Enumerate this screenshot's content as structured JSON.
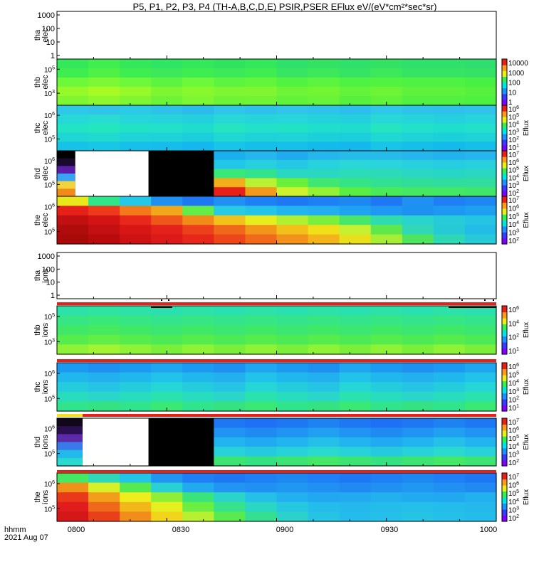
{
  "title": "P5, P1, P2, P3, P4 (TH-A,B,C,D,E) PSIR,PSER EFlux eV/(eV*cm²*sec*sr)",
  "x_axis": {
    "ticks": [
      "0800",
      "0830",
      "0900",
      "0930",
      "1000"
    ],
    "label_line1": "hhmm",
    "label_line2": "2021 Aug 07"
  },
  "colorbar_label": "Eflux",
  "chart_data": [
    {
      "type": "heatmap",
      "panel": "tha-elec",
      "ylabel": [
        "tha",
        "elec"
      ],
      "empty": true,
      "yticks": [
        "1000",
        "100",
        "10",
        "1"
      ],
      "colorbar": null
    },
    {
      "type": "heatmap",
      "panel": "thb-elec",
      "ylabel": [
        "thb",
        "elec"
      ],
      "yticks": [
        {
          "base": "10",
          "exp": "5"
        },
        {
          "base": "10",
          "exp": "3"
        }
      ],
      "colorbar": [
        "10000",
        "1000",
        "100",
        "10",
        "1"
      ],
      "bands": [
        [
          "#34e85a",
          "#40ee50",
          "#34e85a",
          "#2fe564",
          "#34e85a",
          "#30e25e",
          "#34e85a",
          "#2fe06a",
          "#33e262",
          "#2fe06a",
          "#33e262",
          "#2fe06a",
          "#2fe06a",
          "#30de70"
        ],
        [
          "#3eee50",
          "#4ef245",
          "#3eee50",
          "#3be95a",
          "#3eee50",
          "#3aea58",
          "#3eee50",
          "#38e562",
          "#3be95a",
          "#36e464",
          "#3be95a",
          "#36e464",
          "#36e464",
          "#35e266"
        ],
        [
          "#6ef83a",
          "#7cf834",
          "#6ef83a",
          "#5cf43e",
          "#6ef83a",
          "#5cf43e",
          "#62f53c",
          "#52f240",
          "#5cf43e",
          "#4ef242",
          "#52f240",
          "#4ef242",
          "#4ef242",
          "#48f044"
        ],
        [
          "#96fa2a",
          "#a8fa24",
          "#96fa2a",
          "#7ef632",
          "#88f82e",
          "#7ef632",
          "#80f630",
          "#6ef436",
          "#74f534",
          "#62f33a",
          "#6ef436",
          "#5ef23c",
          "#5ef23c",
          "#58f03e"
        ],
        [
          "#7ef632",
          "#8ef82e",
          "#7ef632",
          "#6ef436",
          "#7ef632",
          "#6ef436",
          "#70f435",
          "#60f33a",
          "#68f438",
          "#56f13e",
          "#60f33a",
          "#52f040",
          "#52f040",
          "#4ef042"
        ]
      ]
    },
    {
      "type": "heatmap",
      "panel": "thc-elec",
      "ylabel": [
        "thc",
        "elec"
      ],
      "yticks": [
        {
          "base": "10",
          "exp": "6"
        },
        {
          "base": "10",
          "exp": "5"
        }
      ],
      "colorbar": [
        {
          "base": "10",
          "exp": "6"
        },
        {
          "base": "10",
          "exp": "5"
        },
        {
          "base": "10",
          "exp": "4"
        },
        {
          "base": "10",
          "exp": "3"
        },
        {
          "base": "10",
          "exp": "2"
        },
        {
          "base": "10",
          "exp": "1"
        }
      ],
      "bands": [
        [
          "#2fc8e8",
          "#30c4ea",
          "#2ccae6",
          "#2ec2ea",
          "#2cbcec",
          "#30c6ea",
          "#2ec2ea",
          "#30c6ea",
          "#2ec4ea",
          "#2cbeec",
          "#30c8e8",
          "#2ec4ea",
          "#2ec2ea",
          "#30c4ea"
        ],
        [
          "#26d8d8",
          "#28dcd4",
          "#26d6da",
          "#28d4dc",
          "#24d0de",
          "#28d8d8",
          "#26d4dc",
          "#26d6da",
          "#24d2dc",
          "#24d0de",
          "#28d8d8",
          "#26d4dc",
          "#24d0de",
          "#26d4dc"
        ],
        [
          "#22e4c4",
          "#24e6be",
          "#22e2c6",
          "#22e0ca",
          "#20dcce",
          "#24e4c2",
          "#22e0ca",
          "#22e2c6",
          "#20decc",
          "#20dcce",
          "#24e4c2",
          "#22e0ca",
          "#20decc",
          "#22e0ca"
        ],
        [
          "#1ed6d4",
          "#20dad0",
          "#1ed4d6",
          "#1ed2d8",
          "#1ccedc",
          "#20d8d2",
          "#1ed2d8",
          "#1ed4d6",
          "#1cd0da",
          "#1ccedc",
          "#20d8d2",
          "#1ed2d8",
          "#1cd0da",
          "#1ed2d8"
        ],
        [
          "#16c2e8",
          "#18c6e6",
          "#16c0ea",
          "#16bcec",
          "#14b8ee",
          "#18c4e8",
          "#16beea",
          "#16c0ea",
          "#14baec",
          "#14b8ee",
          "#18c4e8",
          "#16beea",
          "#14baec",
          "#16beea"
        ]
      ]
    },
    {
      "type": "heatmap",
      "panel": "thd-elec",
      "ylabel": [
        "thd",
        "elec"
      ],
      "yticks": [
        {
          "base": "10",
          "exp": "6"
        },
        {
          "base": "10",
          "exp": "5"
        }
      ],
      "colorbar": [
        {
          "base": "10",
          "exp": "7"
        },
        {
          "base": "10",
          "exp": "6"
        },
        {
          "base": "10",
          "exp": "5"
        },
        {
          "base": "10",
          "exp": "4"
        },
        {
          "base": "10",
          "exp": "3"
        },
        {
          "base": "10",
          "exp": "2"
        }
      ],
      "gap": {
        "start_min": 5,
        "end_min": 25
      },
      "first_column": [
        "#000000",
        "#1a0a2e",
        "#5a1fa8",
        "#3aa2f2",
        "#f2d43a",
        "#f28a1a"
      ],
      "bands": [
        [
          "#000000",
          "#000000",
          "#000000",
          "#000000",
          "#000000",
          "#1ab0ee",
          "#24b6ec",
          "#20aaf0",
          "#24b6ec",
          "#26bcea",
          "#26bcea",
          "#24b6ec",
          "#22b2ee",
          "#24b6ec"
        ],
        [
          "#000000",
          "#000000",
          "#000000",
          "#000000",
          "#000000",
          "#22c6e6",
          "#26d0de",
          "#24c8e4",
          "#28d2dc",
          "#2ad6d8",
          "#2ad4da",
          "#28d0de",
          "#26cce0",
          "#28d0de"
        ],
        [
          "#000000",
          "#000000",
          "#000000",
          "#000000",
          "#000000",
          "#3ae87a",
          "#32e28c",
          "#28d8c0",
          "#2ad8c2",
          "#2cdcb8",
          "#2cdab8",
          "#2ad8c2",
          "#28d6c6",
          "#2ad8c2"
        ],
        [
          "#000000",
          "#000000",
          "#000000",
          "#000000",
          "#000000",
          "#f2ae1a",
          "#b8f232",
          "#6af03a",
          "#40e872",
          "#36e488",
          "#32e094",
          "#30de9a",
          "#30dc9e",
          "#30dc9e"
        ],
        [
          "#000000",
          "#000000",
          "#000000",
          "#000000",
          "#000000",
          "#e8201a",
          "#f29a1a",
          "#cef22e",
          "#92f234",
          "#5aee44",
          "#48ea5a",
          "#44e862",
          "#42e866",
          "#40e66a"
        ]
      ]
    },
    {
      "type": "heatmap",
      "panel": "the-elec",
      "ylabel": [
        "the",
        "elec"
      ],
      "yticks": [
        {
          "base": "10",
          "exp": "6"
        },
        {
          "base": "10",
          "exp": "5"
        }
      ],
      "colorbar": [
        {
          "base": "10",
          "exp": "7"
        },
        {
          "base": "10",
          "exp": "6"
        },
        {
          "base": "10",
          "exp": "5"
        },
        {
          "base": "10",
          "exp": "4"
        },
        {
          "base": "10",
          "exp": "3"
        },
        {
          "base": "10",
          "exp": "2"
        }
      ],
      "bands": [
        [
          "#e8e81a",
          "#30e68a",
          "#24c8e8",
          "#2090f2",
          "#1e78f4",
          "#2090f2",
          "#1e80f4",
          "#1e78f4",
          "#1e80f4",
          "#1e88f2",
          "#1e78f4",
          "#2090f2",
          "#1e80f4",
          "#1e88f2"
        ],
        [
          "#e8201a",
          "#ee3a1a",
          "#f27a1a",
          "#f2a61a",
          "#62ee48",
          "#28cce2",
          "#24c4e8",
          "#22b4ee",
          "#22aef0",
          "#20a2f2",
          "#1e98f2",
          "#1e90f2",
          "#1e98f2",
          "#1ea0f2"
        ],
        [
          "#c01010",
          "#d41414",
          "#e8281a",
          "#ee561a",
          "#f28a1a",
          "#f2c21a",
          "#e6ee1e",
          "#b0f030",
          "#7cee3c",
          "#48e66a",
          "#30dcae",
          "#2ad4cc",
          "#26cad8",
          "#24c4e4"
        ],
        [
          "#b00c0c",
          "#c41010",
          "#d81616",
          "#e4221a",
          "#ec401a",
          "#f0681a",
          "#f2961a",
          "#f2c01a",
          "#f0e01a",
          "#c6f032",
          "#5ee84e",
          "#30d8b8",
          "#26cad6",
          "#22bce6"
        ],
        [
          "#a80a0a",
          "#b80c0c",
          "#cc1212",
          "#dc1a1a",
          "#e6281a",
          "#ec461a",
          "#f06a1a",
          "#f2921a",
          "#f2b41a",
          "#e8e01a",
          "#a6ee36",
          "#4ee45e",
          "#2ed8b4",
          "#26cad6"
        ]
      ]
    },
    {
      "type": "heatmap",
      "panel": "tha-ions",
      "ylabel": [
        "tha",
        "ions"
      ],
      "empty": true,
      "yticks": [
        "1000",
        "100",
        "10",
        "1"
      ],
      "colorbar": null
    },
    {
      "type": "heatmap",
      "panel": "thb-ions",
      "ylabel": [
        "thb",
        "ions"
      ],
      "yticks": [
        {
          "base": "10",
          "exp": "5"
        },
        {
          "base": "10",
          "exp": "3"
        }
      ],
      "colorbar": [
        {
          "base": "10",
          "exp": "6"
        },
        {
          "base": "10",
          "exp": "4"
        },
        {
          "base": "10",
          "exp": "2"
        },
        {
          "base": "10",
          "exp": "1"
        }
      ],
      "bands": [
        [
          "#2ce2a8",
          "#2ee4a0",
          "#2ce2a8",
          "#2ae0ae",
          "#2ce2a8",
          "#2ae0ae",
          "#2ce2a8",
          "#2ae0ae",
          "#2ce2a8",
          "#2ae0ae",
          "#2ce2a8",
          "#2ae0ae",
          "#2ce2a8",
          "#2ae0ae"
        ],
        [
          "#36e684",
          "#3ae87a",
          "#36e684",
          "#34e48c",
          "#36e684",
          "#34e48c",
          "#36e684",
          "#34e48c",
          "#36e684",
          "#34e48c",
          "#36e684",
          "#34e48c",
          "#36e684",
          "#34e48c"
        ],
        [
          "#40e868",
          "#46ea5e",
          "#40e868",
          "#3ce672",
          "#40e868",
          "#3ce672",
          "#40e868",
          "#3ce672",
          "#40e868",
          "#3ce672",
          "#40e868",
          "#3ce672",
          "#40e868",
          "#3ce672"
        ],
        [
          "#56ec4c",
          "#62ee46",
          "#56ec4c",
          "#4cea54",
          "#56ec4c",
          "#4cea54",
          "#56ec4c",
          "#4cea54",
          "#56ec4c",
          "#4cea54",
          "#56ec4c",
          "#4cea54",
          "#56ec4c",
          "#4cea54"
        ],
        [
          "#8ef236",
          "#a0f432",
          "#8ef236",
          "#7aef3a",
          "#8ef236",
          "#7aef3a",
          "#8ef236",
          "#7aef3a",
          "#8ef236",
          "#7aef3a",
          "#8ef236",
          "#7aef3a",
          "#8ef236",
          "#7aef3a"
        ]
      ]
    },
    {
      "type": "heatmap",
      "panel": "thc-ions",
      "ylabel": [
        "thc",
        "ions"
      ],
      "yticks": [
        {
          "base": "10",
          "exp": "6"
        },
        {
          "base": "10",
          "exp": "5"
        }
      ],
      "colorbar": [
        {
          "base": "10",
          "exp": "6"
        },
        {
          "base": "10",
          "exp": "5"
        },
        {
          "base": "10",
          "exp": "4"
        },
        {
          "base": "10",
          "exp": "3"
        },
        {
          "base": "10",
          "exp": "2"
        },
        {
          "base": "10",
          "exp": "1"
        }
      ],
      "bands": [
        [
          "#1c9af2",
          "#1e90f2",
          "#1c9af2",
          "#1ea6f0",
          "#1c9af2",
          "#1e90f2",
          "#1ea6f0",
          "#1c9af2",
          "#1e90f2",
          "#1ea6f0",
          "#1c9af2",
          "#1e90f2",
          "#1c9af2",
          "#1ea6f0"
        ],
        [
          "#20b8ec",
          "#22b0ee",
          "#20b8ec",
          "#22c2ea",
          "#20b8ec",
          "#22b0ee",
          "#22c2ea",
          "#20b8ec",
          "#22b0ee",
          "#22c2ea",
          "#20b8ec",
          "#22b0ee",
          "#20b8ec",
          "#22c2ea"
        ],
        [
          "#24ccde",
          "#26c4e4",
          "#24ccde",
          "#26d6d6",
          "#24ccde",
          "#26c4e4",
          "#26d6d6",
          "#24ccde",
          "#26c4e4",
          "#26d6d6",
          "#24ccde",
          "#26c4e4",
          "#24ccde",
          "#26d6d6"
        ],
        [
          "#28dcbe",
          "#2ad6c8",
          "#28dcbe",
          "#2ae2ae",
          "#28dcbe",
          "#2ad6c8",
          "#2ae2ae",
          "#28dcbe",
          "#2ad6c8",
          "#2ae2ae",
          "#28dcbe",
          "#2ad6c8",
          "#28dcbe",
          "#2ae2ae"
        ],
        [
          "#30e48e",
          "#34e282",
          "#30e48e",
          "#3ae876",
          "#30e48e",
          "#34e282",
          "#3ae876",
          "#30e48e",
          "#34e282",
          "#3ae876",
          "#30e48e",
          "#34e282",
          "#30e48e",
          "#3ae876"
        ]
      ]
    },
    {
      "type": "heatmap",
      "panel": "thd-ions",
      "ylabel": [
        "thd",
        "ions"
      ],
      "yticks": [
        {
          "base": "10",
          "exp": "6"
        },
        {
          "base": "10",
          "exp": "5"
        }
      ],
      "colorbar": [
        {
          "base": "10",
          "exp": "7"
        },
        {
          "base": "10",
          "exp": "6"
        },
        {
          "base": "10",
          "exp": "5"
        },
        {
          "base": "10",
          "exp": "4"
        },
        {
          "base": "10",
          "exp": "3"
        },
        {
          "base": "10",
          "exp": "2"
        }
      ],
      "gap": {
        "start_min": 7,
        "end_min": 25
      },
      "first_column": [
        "#100818",
        "#2a1050",
        "#5a2aa8",
        "#3a7ae8",
        "#22b8ec",
        "#2ad8d0"
      ],
      "bands": [
        [
          "#000000",
          "#1e78f4",
          "#000000",
          "#000000",
          "#000000",
          "#1e78f4",
          "#1e70f4",
          "#1e78f4",
          "#1e82f2",
          "#1e78f4",
          "#1e70f4",
          "#1e78f4",
          "#1e82f2",
          "#1e78f4"
        ],
        [
          "#000000",
          "#2090f2",
          "#000000",
          "#000000",
          "#000000",
          "#2094f2",
          "#1e8af2",
          "#2094f2",
          "#20a0f0",
          "#2094f2",
          "#1e8af2",
          "#2094f2",
          "#20a0f0",
          "#2094f2"
        ],
        [
          "#000000",
          "#1e98f2",
          "#000000",
          "#000000",
          "#000000",
          "#22b4ee",
          "#20aaf0",
          "#22b4ee",
          "#24c0ea",
          "#22b4ee",
          "#20aaf0",
          "#22b4ee",
          "#24c0ea",
          "#22b4ee"
        ],
        [
          "#000000",
          "#d81a1a",
          "#000000",
          "#000000",
          "#000000",
          "#28d2da",
          "#26cade",
          "#28d2da",
          "#2adad0",
          "#28d2da",
          "#26cade",
          "#28d2da",
          "#2adad0",
          "#28d2da"
        ],
        [
          "#000000",
          "#f2e21a",
          "#000000",
          "#000000",
          "#000000",
          "#3ce474",
          "#34e282",
          "#3ce474",
          "#44e866",
          "#3ce474",
          "#34e282",
          "#3ce474",
          "#44e866",
          "#3ce474"
        ]
      ]
    },
    {
      "type": "heatmap",
      "panel": "the-ions",
      "ylabel": [
        "the",
        "ions"
      ],
      "yticks": [
        {
          "base": "10",
          "exp": "6"
        },
        {
          "base": "10",
          "exp": "5"
        }
      ],
      "colorbar": [
        {
          "base": "10",
          "exp": "7"
        },
        {
          "base": "10",
          "exp": "6"
        },
        {
          "base": "10",
          "exp": "5"
        },
        {
          "base": "10",
          "exp": "4"
        },
        {
          "base": "10",
          "exp": "3"
        },
        {
          "base": "10",
          "exp": "2"
        }
      ],
      "bands": [
        [
          "#44e862",
          "#2ed8b8",
          "#24c4e6",
          "#2096f2",
          "#1e80f4",
          "#1e78f4",
          "#1e80f4",
          "#1e88f2",
          "#1e80f4",
          "#1e78f4",
          "#1e80f4",
          "#1e88f2",
          "#1e80f4",
          "#1e78f4"
        ],
        [
          "#f0921a",
          "#d8f02a",
          "#56ea4e",
          "#2ad0d2",
          "#22aaf0",
          "#2096f2",
          "#2090f2",
          "#2098f2",
          "#2090f2",
          "#208af2",
          "#2090f2",
          "#2098f2",
          "#2090f2",
          "#208af2"
        ],
        [
          "#e83a1a",
          "#f29e1a",
          "#eeee1e",
          "#8eee38",
          "#3ae47a",
          "#2ad4c8",
          "#24c0e8",
          "#22b0ee",
          "#22a8f0",
          "#22aaf0",
          "#22b0ee",
          "#22aaf0",
          "#22a8f0",
          "#22b0ee"
        ],
        [
          "#e01c1c",
          "#ee6a1a",
          "#f2b81a",
          "#e6f01e",
          "#6aee42",
          "#36e28a",
          "#2ad6c4",
          "#26c8e0",
          "#24bcea",
          "#24b8ec",
          "#24bcea",
          "#24c0ea",
          "#24bcea",
          "#24b8ec"
        ],
        [
          "#d41818",
          "#e8401a",
          "#f28c1a",
          "#f2d41a",
          "#b6f030",
          "#58ea4e",
          "#34e090",
          "#2ad2ca",
          "#26c4e4",
          "#24bcea",
          "#24c0ea",
          "#26c4e4",
          "#24c0ea",
          "#24bcea"
        ]
      ]
    }
  ]
}
